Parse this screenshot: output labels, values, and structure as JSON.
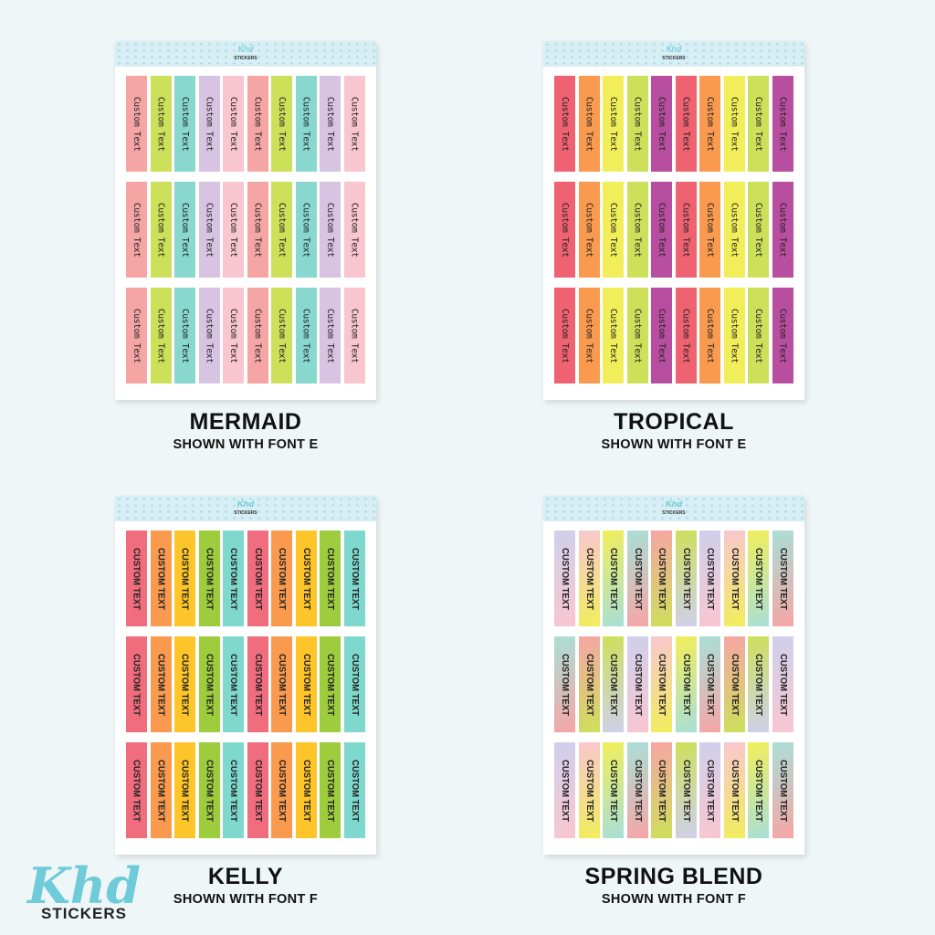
{
  "brand": {
    "logo_text": "Khd",
    "logo_sub": "STICKERS"
  },
  "strip_text_e": "Custom Text",
  "strip_text_f": "CUSTOM TEXT",
  "sheets": [
    {
      "name": "MERMAID",
      "subtitle": "SHOWN WITH FONT E",
      "font": "E",
      "colors": [
        "#f6a5a5",
        "#cde05a",
        "#88d8cf",
        "#d8c3e3",
        "#f9c6d0"
      ]
    },
    {
      "name": "TROPICAL",
      "subtitle": "SHOWN WITH FONT E",
      "font": "E",
      "colors": [
        "#ef6272",
        "#f99a4f",
        "#f1ee5a",
        "#cde05a",
        "#b84ea0"
      ]
    },
    {
      "name": "KELLY",
      "subtitle": "SHOWN WITH FONT F",
      "font": "F",
      "colors": [
        "#f06d7e",
        "#f99a4f",
        "#fdc52a",
        "#9dcd3d",
        "#7fd8cd"
      ]
    },
    {
      "name": "SPRING BLEND",
      "subtitle": "SHOWN WITH FONT F",
      "font": "F",
      "colors": [
        "#cfd0ec",
        "#f9c6d0",
        "#f1ee5a",
        "#a9dfd6",
        "#f6a5a5",
        "#cde05a"
      ]
    }
  ]
}
